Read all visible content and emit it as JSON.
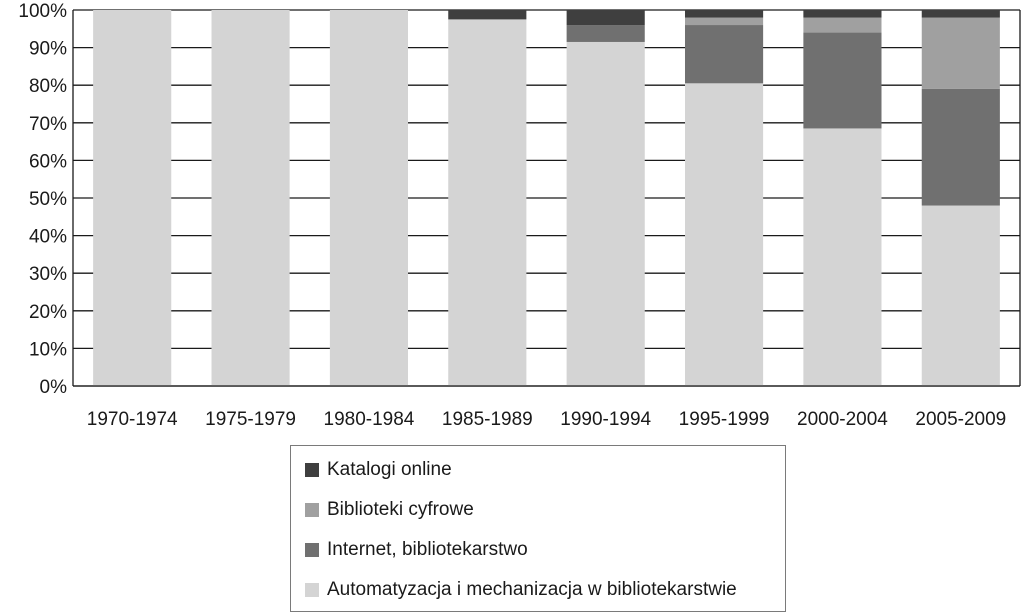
{
  "chart_data": {
    "type": "bar",
    "stacked": true,
    "categories": [
      "1970-1974",
      "1975-1979",
      "1980-1984",
      "1985-1989",
      "1990-1994",
      "1995-1999",
      "2000-2004",
      "2005-2009"
    ],
    "y_ticks": [
      "0%",
      "10%",
      "20%",
      "30%",
      "40%",
      "50%",
      "60%",
      "70%",
      "80%",
      "90%",
      "100%"
    ],
    "ylim": [
      0,
      100
    ],
    "grid": true,
    "legend_position": "bottom",
    "series": [
      {
        "name": "Automatyzacja i mechanizacja w bibliotekarstwie",
        "color": "#d4d4d4",
        "values": [
          100,
          100,
          100,
          97.5,
          91.5,
          80.5,
          68.5,
          48
        ]
      },
      {
        "name": "Internet, bibliotekarstwo",
        "color": "#707070",
        "values": [
          0,
          0,
          0,
          0,
          4.5,
          15.5,
          25.5,
          31
        ]
      },
      {
        "name": "Biblioteki cyfrowe",
        "color": "#a0a0a0",
        "values": [
          0,
          0,
          0,
          0,
          0,
          2,
          4,
          19
        ]
      },
      {
        "name": "Katalogi online",
        "color": "#3f3f3f",
        "values": [
          0,
          0,
          0,
          2.5,
          4,
          2,
          2,
          2
        ]
      }
    ],
    "legend_order": [
      "Katalogi online",
      "Biblioteki cyfrowe",
      "Internet, bibliotekarstwo",
      "Automatyzacja i mechanizacja w bibliotekarstwie"
    ]
  }
}
